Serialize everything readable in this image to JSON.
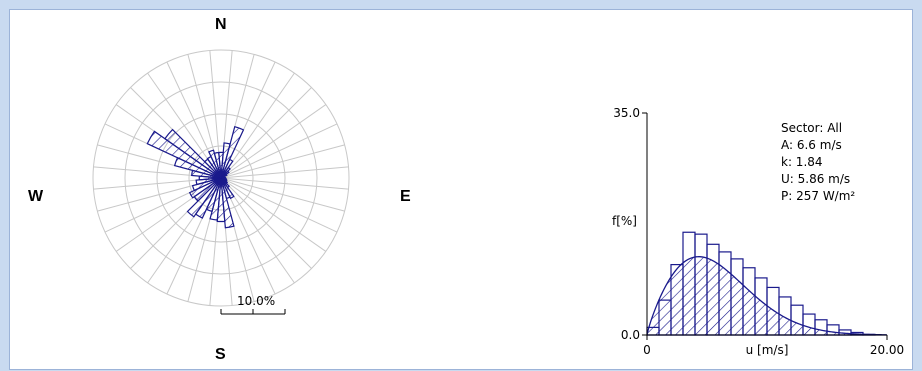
{
  "compass": {
    "n": "N",
    "e": "E",
    "s": "S",
    "w": "W"
  },
  "rose": {
    "scale_label": "10.0%",
    "ring_step": 5.0,
    "rings": 4
  },
  "stats": {
    "sector": "Sector: All",
    "a": "A: 6.6 m/s",
    "k": "k: 1.84",
    "u": "U: 5.86 m/s",
    "p": "P: 257 W/m²"
  },
  "colors": {
    "bar": "#1a1a8c",
    "grid": "#c8c8c8"
  },
  "chart_data": [
    {
      "type": "rose",
      "sectors": 36,
      "sector_width_deg": 10,
      "directions_deg": [
        0,
        10,
        20,
        30,
        40,
        50,
        60,
        70,
        80,
        90,
        100,
        110,
        120,
        130,
        140,
        150,
        160,
        170,
        180,
        190,
        200,
        210,
        220,
        230,
        240,
        250,
        260,
        270,
        280,
        290,
        300,
        310,
        320,
        330,
        340,
        350
      ],
      "values_percent": [
        4.0,
        5.5,
        8.3,
        3.2,
        2.0,
        1.5,
        1.0,
        0.6,
        0.6,
        0.7,
        0.8,
        0.9,
        1.0,
        1.2,
        1.8,
        3.5,
        3.3,
        7.8,
        6.8,
        6.6,
        5.4,
        6.9,
        7.4,
        5.1,
        5.4,
        4.6,
        3.9,
        3.4,
        4.6,
        7.5,
        12.7,
        10.7,
        3.6,
        3.7,
        4.5,
        4.0
      ],
      "scale_label": "10.0%"
    },
    {
      "type": "bar",
      "xlabel": "u [m/s]",
      "ylabel": "f[%]",
      "xlim": [
        0,
        20
      ],
      "ylim": [
        0,
        35
      ],
      "x_ticks": [
        "0",
        "20.00"
      ],
      "y_ticks": [
        "0.0",
        "35.0"
      ],
      "bin_width": 1,
      "bins_start": [
        0,
        1,
        2,
        3,
        4,
        5,
        6,
        7,
        8,
        9,
        10,
        11,
        12,
        13,
        14,
        15,
        16,
        17,
        18,
        19
      ],
      "values": [
        1.2,
        5.5,
        11.1,
        16.2,
        15.9,
        14.3,
        13.1,
        12.0,
        10.6,
        9.0,
        7.5,
        6.0,
        4.7,
        3.3,
        2.4,
        1.6,
        0.8,
        0.4,
        0.1,
        0.0
      ],
      "weibull": {
        "A": 6.6,
        "k": 1.84
      }
    }
  ]
}
